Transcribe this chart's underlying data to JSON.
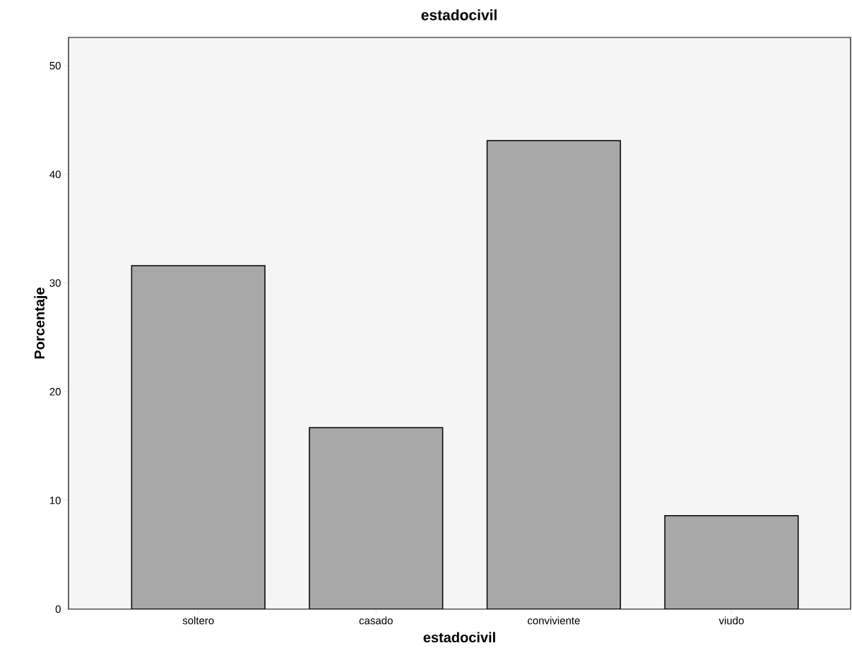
{
  "chart_data": {
    "type": "bar",
    "title": "estadocivil",
    "xlabel": "estadocivil",
    "ylabel": "Porcentaje",
    "categories": [
      "soltero",
      "casado",
      "conviviente",
      "viudo"
    ],
    "values": [
      31.6,
      16.7,
      43.1,
      8.6
    ],
    "color": "#a8a8a8",
    "ylim": [
      0,
      52.6
    ],
    "yticks": [
      0,
      10,
      20,
      30,
      40,
      50
    ],
    "grid": false
  }
}
